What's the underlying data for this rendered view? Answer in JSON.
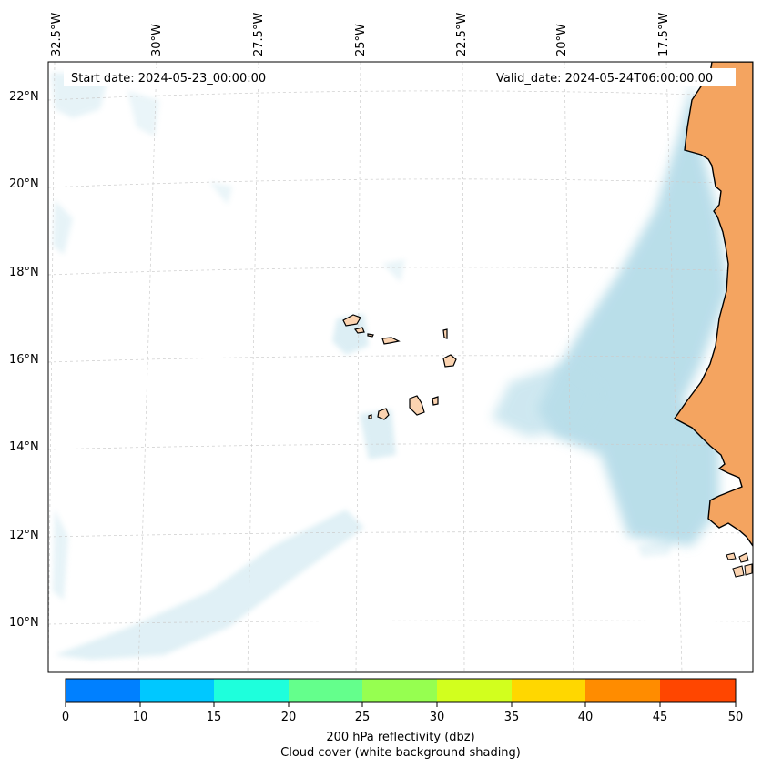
{
  "map": {
    "start_date": "Start date: 2024-05-23_00:00:00",
    "valid_date": "Valid_date: 2024-05-24T06:00:00.00",
    "lon_ticks": [
      "32.5°W",
      "30°W",
      "27.5°W",
      "25°W",
      "22.5°W",
      "20°W",
      "17.5°W"
    ],
    "lat_ticks": [
      "22°N",
      "20°N",
      "18°N",
      "16°N",
      "14°N",
      "12°N",
      "10°N"
    ],
    "land_color": "#f4a460",
    "island_color": "#fbd3b0",
    "cloud_color": "#add8e6",
    "grid": true
  },
  "colorbar": {
    "title": "200 hPa reflectivity (dbz)",
    "subtitle": "Cloud cover (white background shading)",
    "ticks": [
      "0",
      "10",
      "15",
      "20",
      "25",
      "30",
      "35",
      "40",
      "45",
      "50"
    ],
    "colors": [
      "#0080ff",
      "#00c8ff",
      "#1effdc",
      "#64ff8c",
      "#96ff50",
      "#d2ff1e",
      "#ffd700",
      "#ff8c00",
      "#ff4600"
    ]
  }
}
